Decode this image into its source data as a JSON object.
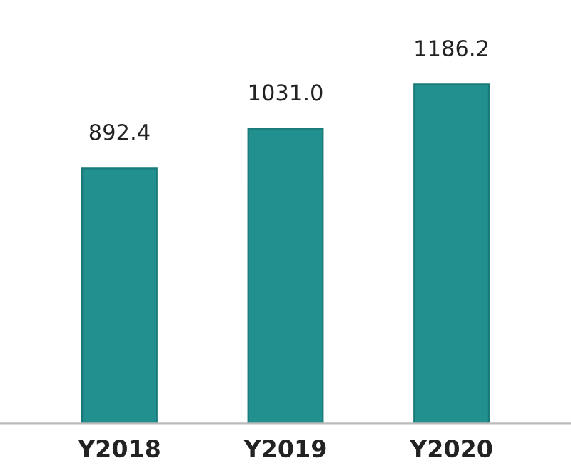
{
  "chart_data": {
    "type": "bar",
    "categories": [
      "Y2018",
      "Y2019",
      "Y2020"
    ],
    "values": [
      892.4,
      1031.0,
      1186.2
    ],
    "value_labels": [
      "892.4",
      "1031.0",
      "1186.2"
    ],
    "color": "#21908f"
  }
}
